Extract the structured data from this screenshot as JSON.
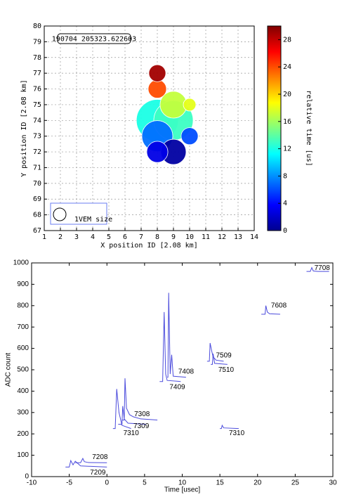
{
  "chart_data": [
    {
      "type": "bubble",
      "annotation": "190704 205323.622603",
      "x_label": "X position ID [2.08 km]",
      "y_label": "Y position ID [2.08 km]",
      "x": [
        8,
        8,
        9,
        10,
        8,
        9,
        8,
        10,
        8,
        9
      ],
      "values": [
        77,
        76,
        75,
        75,
        74,
        74,
        73,
        73,
        72,
        72
      ],
      "sizes": [
        1.8,
        2.1,
        4.5,
        1.0,
        11,
        9.7,
        6.0,
        1.8,
        2.8,
        4.0
      ],
      "times": [
        29,
        24,
        17,
        18,
        12,
        13,
        7,
        6,
        3,
        1
      ],
      "xlim": [
        1,
        14
      ],
      "ylim": [
        67,
        80
      ],
      "xticks": [
        1,
        2,
        3,
        4,
        5,
        6,
        7,
        8,
        9,
        10,
        11,
        12,
        13,
        14
      ],
      "yticks": [
        67,
        68,
        69,
        70,
        71,
        72,
        73,
        74,
        75,
        76,
        77,
        78,
        79,
        80
      ],
      "grid": true,
      "colorbar": {
        "label": "relative time [us]",
        "lim": [
          0,
          30
        ],
        "ticks": [
          0,
          4,
          8,
          12,
          16,
          20,
          24,
          28
        ]
      },
      "legend": {
        "label": "1VEM size",
        "size": 1
      }
    },
    {
      "type": "line",
      "x_label": "Time [usec]",
      "y_label": "ADC count",
      "xlim": [
        -10,
        30
      ],
      "ylim": [
        0,
        1000
      ],
      "xticks": [
        -10,
        -5,
        0,
        5,
        10,
        15,
        20,
        25,
        30
      ],
      "yticks": [
        0,
        100,
        200,
        300,
        400,
        500,
        600,
        700,
        800,
        900,
        1000
      ],
      "series": [
        {
          "name": "7708",
          "color": "#4b4bdc",
          "x": [
            26.5,
            27.0,
            27.2,
            27.4,
            28.0,
            29.5
          ],
          "values": [
            960,
            960,
            978,
            962,
            960,
            960
          ]
        },
        {
          "name": "7608",
          "color": "#4b4bdc",
          "x": [
            20.5,
            21.0,
            21.1,
            21.3,
            21.6,
            23.0
          ],
          "values": [
            760,
            760,
            800,
            770,
            762,
            760
          ]
        },
        {
          "name": "7509",
          "color": "#4b4bdc",
          "x": [
            13.3,
            13.6,
            13.7,
            13.9,
            14.1,
            14.5,
            15.5
          ],
          "values": [
            540,
            540,
            625,
            590,
            560,
            545,
            540
          ]
        },
        {
          "name": "7510",
          "color": "#4b4bdc",
          "x": [
            13.8,
            14.0,
            14.1,
            14.3,
            16.0
          ],
          "values": [
            525,
            525,
            575,
            530,
            525
          ]
        },
        {
          "name": "7408",
          "color": "#4b4bdc",
          "x": [
            8.0,
            8.1,
            8.2,
            8.4,
            8.6,
            8.8,
            10.5
          ],
          "values": [
            465,
            465,
            860,
            480,
            570,
            470,
            465
          ]
        },
        {
          "name": "7409",
          "color": "#4b4bdc",
          "x": [
            7.0,
            7.4,
            7.6,
            7.8,
            8.0,
            9.8
          ],
          "values": [
            445,
            445,
            770,
            480,
            450,
            445
          ]
        },
        {
          "name": "7308",
          "color": "#4b4bdc",
          "x": [
            2.0,
            2.3,
            2.4,
            2.6,
            3.0,
            3.5,
            4.5,
            6.7
          ],
          "values": [
            265,
            265,
            460,
            320,
            290,
            280,
            270,
            265
          ]
        },
        {
          "name": "7309",
          "color": "#4b4bdc",
          "x": [
            1.5,
            2.0,
            2.1,
            2.3,
            2.8,
            5.2
          ],
          "values": [
            245,
            245,
            330,
            270,
            250,
            245
          ]
        },
        {
          "name": "7310",
          "color": "#4b4bdc",
          "x": [
            0.8,
            1.1,
            1.3,
            1.6,
            2.0,
            3.2
          ],
          "values": [
            225,
            225,
            410,
            300,
            240,
            225
          ]
        },
        {
          "name": "7310",
          "color": "#4b4bdc",
          "x": [
            15.0,
            15.2,
            15.3,
            15.5,
            17.5
          ],
          "values": [
            225,
            225,
            240,
            228,
            225
          ]
        },
        {
          "name": "7208",
          "color": "#4b4bdc",
          "x": [
            -4.2,
            -3.5,
            -3.2,
            -3.0,
            -2.5,
            0.0
          ],
          "values": [
            65,
            65,
            85,
            70,
            66,
            65
          ]
        },
        {
          "name": "7209",
          "color": "#4b4bdc",
          "x": [
            -5.5,
            -5.0,
            -4.8,
            -4.5,
            -4.2,
            -3.5,
            0.0
          ],
          "values": [
            45,
            45,
            75,
            55,
            72,
            50,
            45
          ]
        }
      ]
    }
  ]
}
